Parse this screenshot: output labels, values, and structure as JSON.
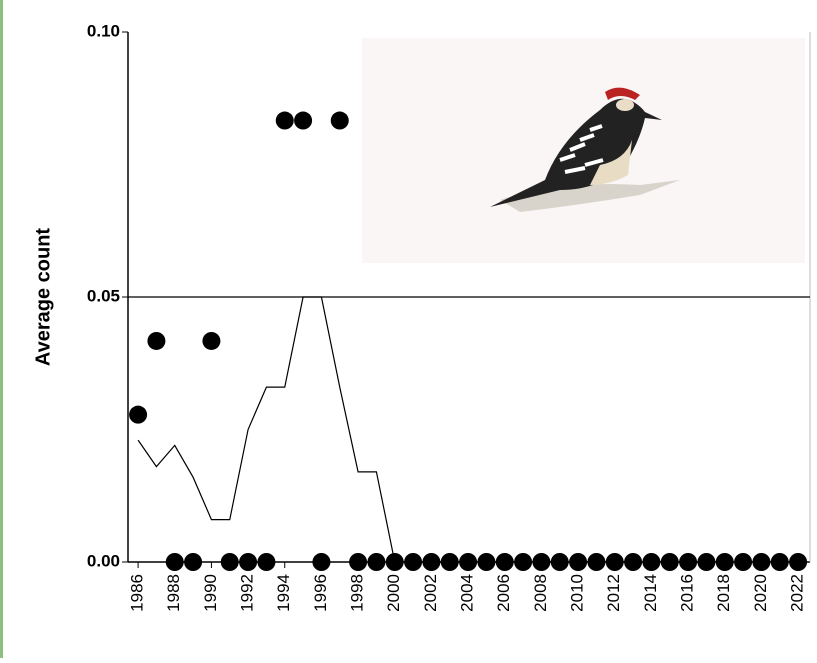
{
  "chart_data": {
    "type": "scatter",
    "ylabel": "Average count",
    "x": [
      1986,
      1987,
      1988,
      1989,
      1990,
      1991,
      1992,
      1993,
      1994,
      1995,
      1996,
      1997,
      1998,
      1999,
      2000,
      2001,
      2002,
      2003,
      2004,
      2005,
      2006,
      2007,
      2008,
      2009,
      2010,
      2011,
      2012,
      2013,
      2014,
      2015,
      2016,
      2017,
      2018,
      2019,
      2020,
      2021,
      2022
    ],
    "values": [
      0.0278,
      0.0417,
      0,
      0,
      0.0417,
      0,
      0,
      0,
      0.0833,
      0.0833,
      0,
      0.0833,
      0,
      0,
      0,
      0,
      0,
      0,
      0,
      0,
      0,
      0,
      0,
      0,
      0,
      0,
      0,
      0,
      0,
      0,
      0,
      0,
      0,
      0,
      0,
      0,
      0
    ],
    "trend": [
      0.023,
      0.018,
      0.022,
      0.016,
      0.008,
      0.008,
      0.025,
      0.033,
      0.033,
      0.05,
      0.05,
      0.033,
      0.017,
      0.017,
      0,
      0,
      0,
      0,
      0,
      0,
      0,
      0,
      0,
      0,
      0,
      0,
      0,
      0,
      0,
      0,
      0,
      0,
      0,
      0,
      0,
      0,
      0
    ],
    "color": "#000000",
    "xlim": [
      1985.45,
      2022.65
    ],
    "ylim": [
      0,
      0.1
    ],
    "xticks": [
      1986,
      1988,
      1990,
      1992,
      1994,
      1996,
      1998,
      2000,
      2002,
      2004,
      2006,
      2008,
      2010,
      2012,
      2014,
      2016,
      2018,
      2020,
      2022
    ],
    "yticks": [
      {
        "value": 0,
        "label": "0.00"
      },
      {
        "value": 0.05,
        "label": "0.05"
      },
      {
        "value": 0.1,
        "label": "0.10"
      }
    ],
    "grid": true
  }
}
